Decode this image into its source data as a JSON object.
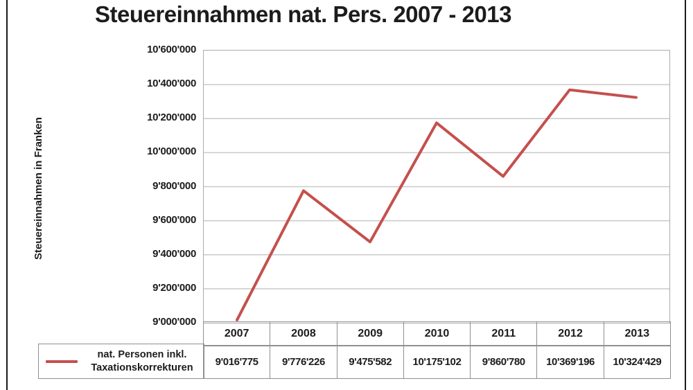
{
  "chart_data": {
    "type": "line",
    "title": "Steuereinnahmen nat. Pers. 2007 - 2013",
    "ylabel": "Steuereinnahmen in Franken",
    "xlabel": "",
    "categories": [
      "2007",
      "2008",
      "2009",
      "2010",
      "2011",
      "2012",
      "2013"
    ],
    "series": [
      {
        "name": "nat. Personen inkl. Taxationskorrekturen",
        "values": [
          9016775,
          9776226,
          9475582,
          10175102,
          9860780,
          10369196,
          10324429
        ],
        "value_labels": [
          "9'016'775",
          "9'776'226",
          "9'475'582",
          "10'175'102",
          "9'860'780",
          "10'369'196",
          "10'324'429"
        ],
        "color": "#c4504d"
      }
    ],
    "ylim": [
      9000000,
      10600000
    ],
    "yticks": [
      {
        "label": "10'600'000",
        "value": 10600000
      },
      {
        "label": "10'400'000",
        "value": 10400000
      },
      {
        "label": "10'200'000",
        "value": 10200000
      },
      {
        "label": "10'000'000",
        "value": 10000000
      },
      {
        "label": "9'800'000",
        "value": 9800000
      },
      {
        "label": "9'600'000",
        "value": 9600000
      },
      {
        "label": "9'400'000",
        "value": 9400000
      },
      {
        "label": "9'200'000",
        "value": 9200000
      },
      {
        "label": "9'000'000",
        "value": 9000000
      }
    ],
    "grid": "horizontal",
    "legend_position": "table-left",
    "legend_lines": [
      "nat. Personen inkl.",
      "Taxationskorrekturen"
    ],
    "colors": {
      "line": "#c4504d",
      "gridline": "#c9c9c9",
      "plot_border": "#ababab",
      "table_border": "#8f8f8f",
      "text": "#1c1c1c",
      "frame": "#1a1a1a",
      "background": "#ffffff"
    }
  }
}
